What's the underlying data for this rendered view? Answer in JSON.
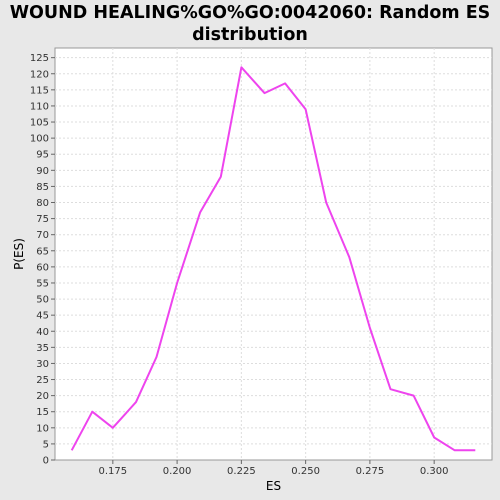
{
  "chart_data": {
    "type": "line",
    "title_lines": [
      "WOUND HEALING%GO%GO:0042060: Random ES",
      "distribution"
    ],
    "xlabel": "ES",
    "ylabel": "P(ES)",
    "xlim": [
      0.1525,
      0.3225
    ],
    "ylim": [
      0,
      128
    ],
    "x_ticks": [
      "0.175",
      "0.200",
      "0.225",
      "0.250",
      "0.275",
      "0.300"
    ],
    "x_tick_values": [
      0.175,
      0.2,
      0.225,
      0.25,
      0.275,
      0.3
    ],
    "y_ticks": [
      0,
      5,
      10,
      15,
      20,
      25,
      30,
      35,
      40,
      45,
      50,
      55,
      60,
      65,
      70,
      75,
      80,
      85,
      90,
      95,
      100,
      105,
      110,
      115,
      120,
      125
    ],
    "grid": true,
    "line_color": "#ee44ee",
    "series": [
      {
        "x": [
          0.159,
          0.167,
          0.175,
          0.184,
          0.192,
          0.2,
          0.209,
          0.217,
          0.225,
          0.234,
          0.242,
          0.25,
          0.258,
          0.267,
          0.275,
          0.283,
          0.292,
          0.3,
          0.308,
          0.316
        ],
        "y": [
          3,
          15,
          10,
          18,
          32,
          55,
          77,
          88,
          122,
          114,
          117,
          109,
          80,
          63,
          41,
          22,
          20,
          7,
          3,
          3
        ]
      }
    ]
  }
}
